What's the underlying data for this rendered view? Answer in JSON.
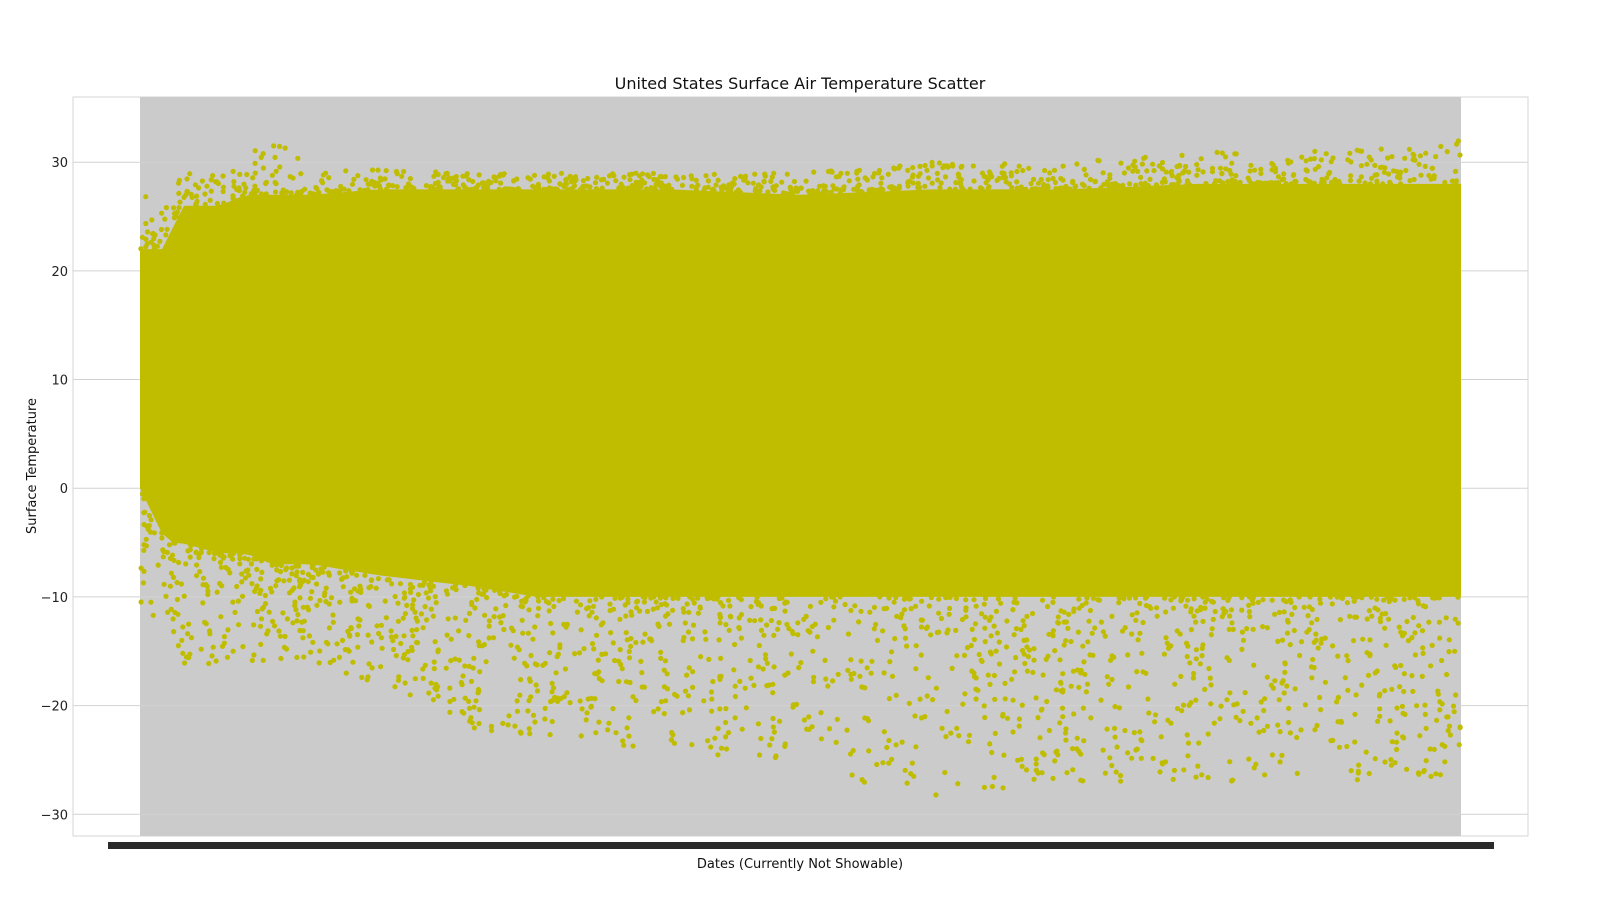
{
  "chart_data": {
    "type": "scatter",
    "title": "United States Surface Air Temperature Scatter",
    "xlabel": "Dates (Currently Not Showable)",
    "ylabel": "Surface Temperature",
    "ylim": [
      -32,
      36
    ],
    "yticks": [
      30,
      20,
      10,
      0,
      -10,
      -20,
      -30
    ],
    "ytick_labels": [
      "30",
      "20",
      "10",
      "0",
      "−10",
      "−20",
      "−30"
    ],
    "grid": true,
    "marker_color": "#c0bd00",
    "data_band_color": "#cbcbcb",
    "series": [
      {
        "envelope": {
          "x": [
            0,
            0.02,
            0.03,
            0.06,
            0.08,
            0.1,
            0.13,
            0.18,
            0.25,
            0.3,
            0.4,
            0.5,
            0.6,
            0.7,
            0.8,
            0.9,
            0.95,
            1.0
          ],
          "dense_max": [
            22,
            22,
            26,
            26,
            27,
            27,
            27,
            27.5,
            27.5,
            27.5,
            27.5,
            27,
            27.5,
            27.5,
            28,
            28,
            28,
            28
          ],
          "dense_min": [
            0,
            -5,
            -5,
            -6,
            -6,
            -7,
            -7,
            -8,
            -9,
            -10,
            -10,
            -10,
            -10,
            -10,
            -10,
            -10,
            -10,
            -10
          ],
          "outer_max": [
            27,
            27,
            29,
            29,
            30,
            33,
            29,
            29.5,
            29,
            29,
            29,
            29,
            30,
            30,
            31,
            31,
            31.5,
            32
          ],
          "outer_min": [
            -14,
            -12,
            -16,
            -17,
            -16,
            -16,
            -16,
            -18,
            -22,
            -23,
            -24,
            -26,
            -28.5,
            -27,
            -27,
            -27,
            -27,
            -27
          ]
        }
      }
    ]
  }
}
